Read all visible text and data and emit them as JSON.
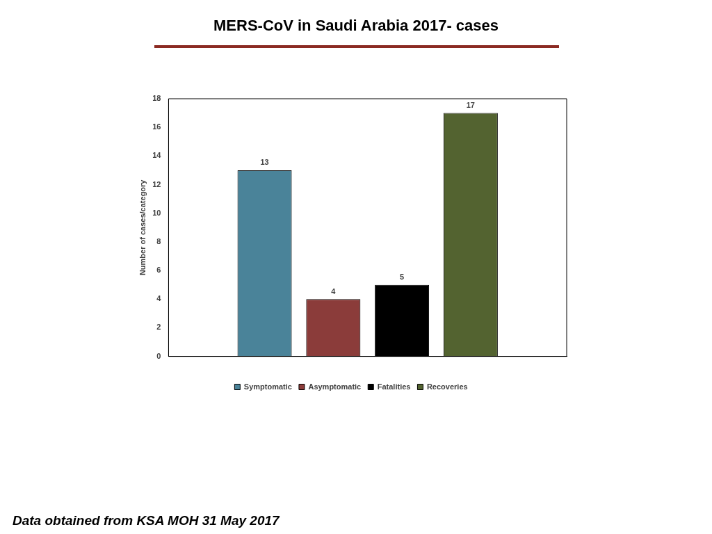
{
  "chart_data": {
    "type": "bar",
    "title": "MERS-CoV in Saudi Arabia 2017- cases",
    "ylabel": "Number of cases/category",
    "categories": [
      null
    ],
    "series": [
      {
        "name": "Symptomatic",
        "color": "#4a8399",
        "values": [
          13
        ]
      },
      {
        "name": "Asymptomatic",
        "color": "#8b3c3a",
        "values": [
          4
        ]
      },
      {
        "name": "Fatalities",
        "color": "#000000",
        "values": [
          5
        ]
      },
      {
        "name": "Recoveries",
        "color": "#536330",
        "values": [
          17
        ]
      }
    ],
    "ylim": [
      0,
      18
    ],
    "yticks": [
      0,
      2,
      4,
      6,
      8,
      10,
      12,
      14,
      16,
      18
    ],
    "grid": false,
    "legend": "bottom",
    "data_labels": true,
    "annotations": [
      "Data obtained from KSA MOH 31 May 2017"
    ]
  }
}
